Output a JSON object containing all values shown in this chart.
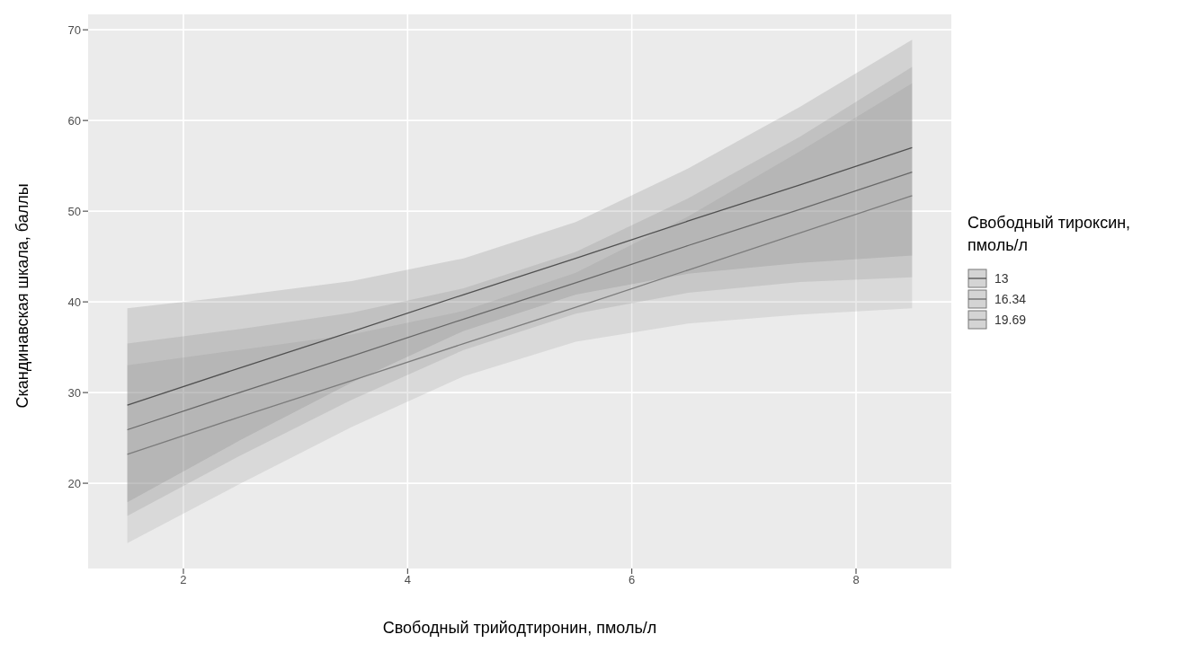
{
  "chart_data": {
    "type": "line",
    "xlabel": "Свободный трийодтиронин,  пмоль/л",
    "ylabel": "Скандинавская шкала, баллы",
    "legend_title": "Свободный тироксин, пмоль/л",
    "x": [
      1.5,
      2.5,
      3.5,
      4.5,
      5.5,
      6.5,
      7.5,
      8.5
    ],
    "series": [
      {
        "name": "13",
        "color": "#505050",
        "values": [
          28.6,
          32.7,
          36.7,
          40.8,
          44.8,
          48.9,
          52.9,
          57.0
        ],
        "lower": [
          17.9,
          24.7,
          31.1,
          36.8,
          40.8,
          43.1,
          44.3,
          45.1
        ],
        "upper": [
          39.3,
          40.7,
          42.3,
          44.8,
          48.8,
          54.7,
          61.5,
          68.9
        ]
      },
      {
        "name": "16.34",
        "color": "#686868",
        "values": [
          25.9,
          30.0,
          34.0,
          38.1,
          42.1,
          46.2,
          50.2,
          54.3
        ],
        "lower": [
          16.4,
          23.0,
          29.2,
          34.7,
          38.7,
          41.0,
          42.2,
          42.7
        ],
        "upper": [
          35.4,
          37.0,
          38.8,
          41.5,
          45.5,
          51.4,
          58.2,
          65.9
        ]
      },
      {
        "name": "19.69",
        "color": "#7c7c7c",
        "values": [
          23.2,
          27.3,
          31.3,
          35.4,
          39.4,
          43.5,
          47.6,
          51.7
        ],
        "lower": [
          13.4,
          19.9,
          26.2,
          31.8,
          35.6,
          37.6,
          38.6,
          39.3
        ],
        "upper": [
          33.0,
          34.7,
          36.4,
          39.0,
          43.2,
          49.4,
          56.6,
          64.1
        ]
      }
    ],
    "xlim": [
      1.15,
      8.85
    ],
    "xticks": [
      2,
      4,
      6,
      8
    ],
    "ylim": [
      10.6,
      71.7
    ],
    "yticks": [
      20,
      30,
      40,
      50,
      60,
      70
    ],
    "grid": true,
    "legend": "right",
    "marker": "none",
    "line_style": "solid"
  }
}
